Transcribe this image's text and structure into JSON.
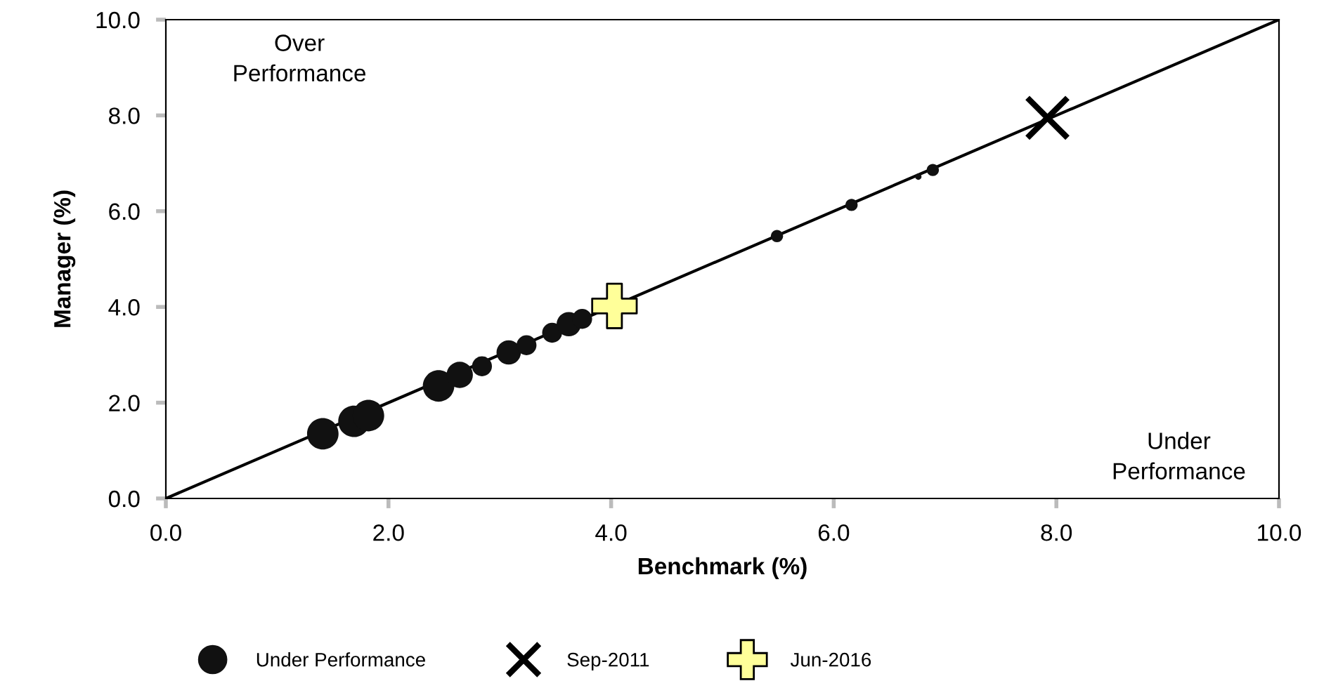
{
  "chart_data": {
    "type": "scatter",
    "xlabel": "Benchmark (%)",
    "ylabel": "Manager (%)",
    "xlim": [
      0,
      10
    ],
    "ylim": [
      0,
      10
    ],
    "xticks": [
      {
        "value": 0,
        "label": "0.0"
      },
      {
        "value": 2,
        "label": "2.0"
      },
      {
        "value": 4,
        "label": "4.0"
      },
      {
        "value": 6,
        "label": "6.0"
      },
      {
        "value": 8,
        "label": "8.0"
      },
      {
        "value": 10,
        "label": "10.0"
      }
    ],
    "yticks": [
      {
        "value": 0,
        "label": "0.0"
      },
      {
        "value": 2,
        "label": "2.0"
      },
      {
        "value": 4,
        "label": "4.0"
      },
      {
        "value": 6,
        "label": "6.0"
      },
      {
        "value": 8,
        "label": "8.0"
      },
      {
        "value": 10,
        "label": "10.0"
      }
    ],
    "grid": false,
    "legend": "bottom",
    "annotations": [
      "Over\nPerformance",
      "Under\nPerformance"
    ],
    "series": [
      {
        "type": "line",
        "color": "#000000",
        "x": [
          0,
          10
        ],
        "values": [
          0,
          10
        ],
        "marker": "none"
      },
      {
        "type": "bubble",
        "name": "Under Performance",
        "color": "#111111",
        "x": [
          1.41,
          1.69,
          1.82,
          2.45,
          2.64,
          2.84,
          3.08,
          3.24,
          3.47,
          3.62,
          3.74,
          5.49,
          6.16,
          6.76,
          6.89
        ],
        "values": [
          1.35,
          1.61,
          1.73,
          2.35,
          2.58,
          2.76,
          3.05,
          3.2,
          3.46,
          3.64,
          3.75,
          5.48,
          6.13,
          6.72,
          6.86
        ],
        "sizes": [
          1,
          1,
          1,
          1,
          0.7,
          0.4,
          0.6,
          0.4,
          0.4,
          0.6,
          0.4,
          0.15,
          0.15,
          0.04,
          0.15
        ]
      },
      {
        "name": "Sep-2011",
        "color": "#000000",
        "marker": "cross",
        "x": [
          7.92
        ],
        "values": [
          7.95
        ]
      },
      {
        "name": "Jun-2016",
        "color": "#ffff99",
        "marker": "plus",
        "x": [
          4.03
        ],
        "values": [
          4.02
        ]
      }
    ]
  }
}
